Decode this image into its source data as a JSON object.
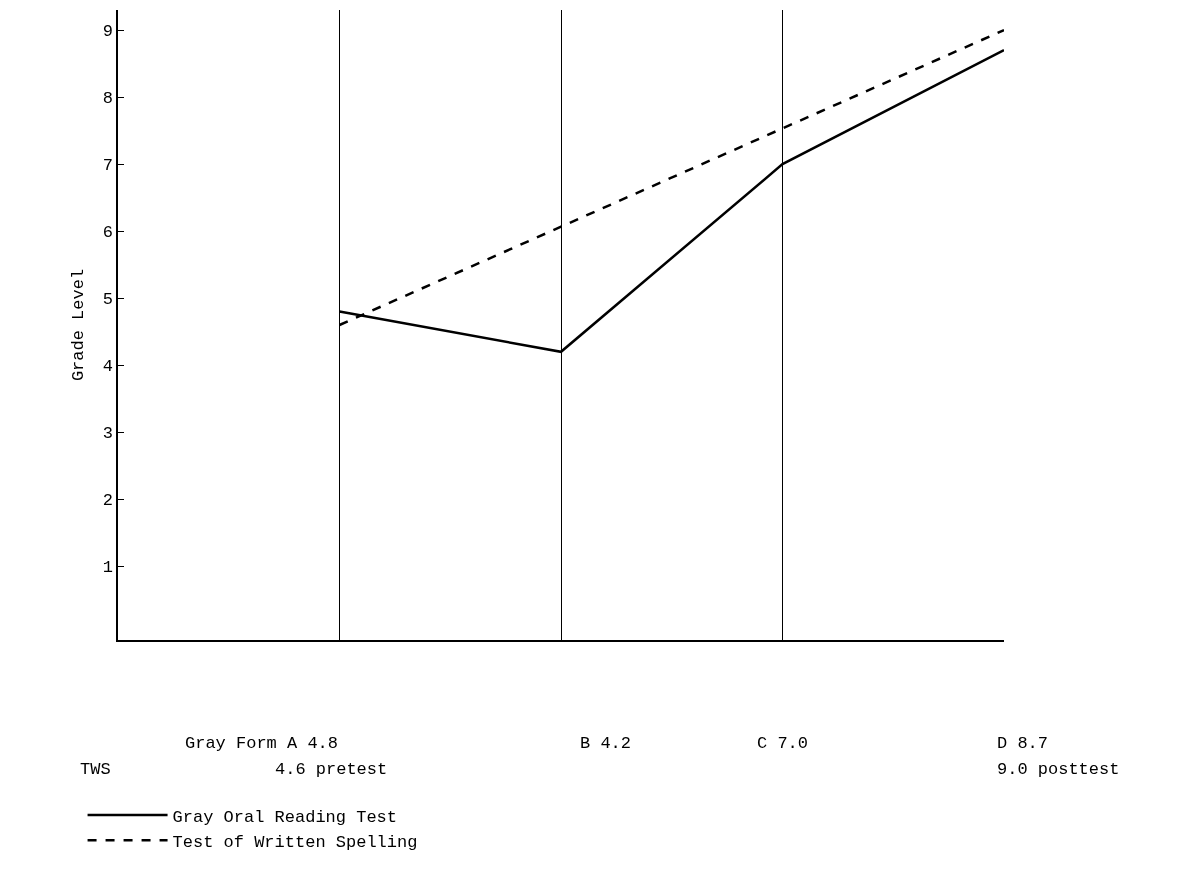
{
  "chart_data": {
    "type": "line",
    "ylabel": "Grade Level",
    "categories": [
      null,
      null,
      null,
      null
    ],
    "ylim": [
      -0.1,
      9.3
    ],
    "yticks": [
      1,
      2,
      3,
      4,
      5,
      6,
      7,
      8,
      9
    ],
    "grid": "x",
    "tick_labels": "y",
    "legend": "bottom",
    "marker": "none",
    "series": [
      {
        "name": "Gray Oral Reading Test",
        "color": "#000000",
        "line_style": "solid",
        "values": [
          4.8,
          4.2,
          7.0,
          8.7
        ]
      },
      {
        "name": "Test of Written Spelling",
        "color": "#000000",
        "line_style": "dashed",
        "values": [
          4.6,
          null,
          null,
          9.0
        ]
      }
    ],
    "annotations": [
      "Gray Form A 4.8",
      "B 4.2",
      "C 7.0",
      "D 8.7",
      "TWS",
      "4.6 pretest",
      "9.0 posttest"
    ]
  }
}
